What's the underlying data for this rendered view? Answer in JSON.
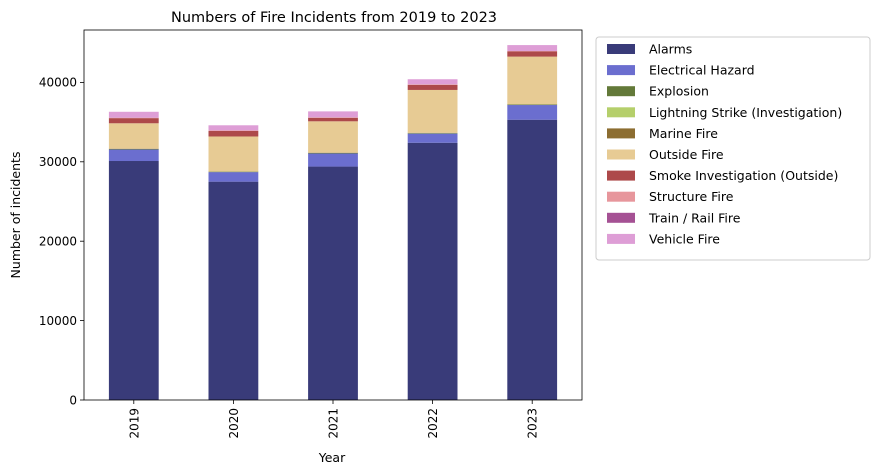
{
  "chart_data": {
    "type": "bar",
    "stacked": true,
    "title": "Numbers of Fire Incidents from 2019 to 2023",
    "xlabel": "Year",
    "ylabel": "Number of incidents",
    "categories": [
      "2019",
      "2020",
      "2021",
      "2022",
      "2023"
    ],
    "ylim": [
      0,
      46600
    ],
    "yticks": [
      0,
      10000,
      20000,
      30000,
      40000
    ],
    "ytick_labels": [
      "0",
      "10000",
      "20000",
      "30000",
      "40000"
    ],
    "grid": false,
    "legend_position": "outside-right",
    "series": [
      {
        "name": "Alarms",
        "color": "#393b79",
        "values": [
          30100,
          27500,
          29400,
          32400,
          35300
        ]
      },
      {
        "name": "Electrical Hazard",
        "color": "#6b6ecf",
        "values": [
          1450,
          1200,
          1650,
          1150,
          1850
        ]
      },
      {
        "name": "Explosion",
        "color": "#637939",
        "values": [
          60,
          50,
          60,
          60,
          60
        ]
      },
      {
        "name": "Lightning Strike (Investigation)",
        "color": "#b5cf6b",
        "values": [
          10,
          10,
          10,
          10,
          10
        ]
      },
      {
        "name": "Marine Fire",
        "color": "#8c6d31",
        "values": [
          30,
          30,
          30,
          30,
          30
        ]
      },
      {
        "name": "Outside Fire",
        "color": "#e7cb94",
        "values": [
          3200,
          4400,
          3950,
          5400,
          6000
        ]
      },
      {
        "name": "Smoke Investigation (Outside)",
        "color": "#ad494a",
        "values": [
          650,
          700,
          450,
          650,
          650
        ]
      },
      {
        "name": "Structure Fire",
        "color": "#e7969c",
        "values": [
          50,
          50,
          50,
          50,
          50
        ]
      },
      {
        "name": "Train / Rail Fire",
        "color": "#a55194",
        "values": [
          10,
          10,
          10,
          10,
          10
        ]
      },
      {
        "name": "Vehicle Fire",
        "color": "#de9ed6",
        "values": [
          740,
          650,
          740,
          640,
          740
        ]
      }
    ]
  }
}
